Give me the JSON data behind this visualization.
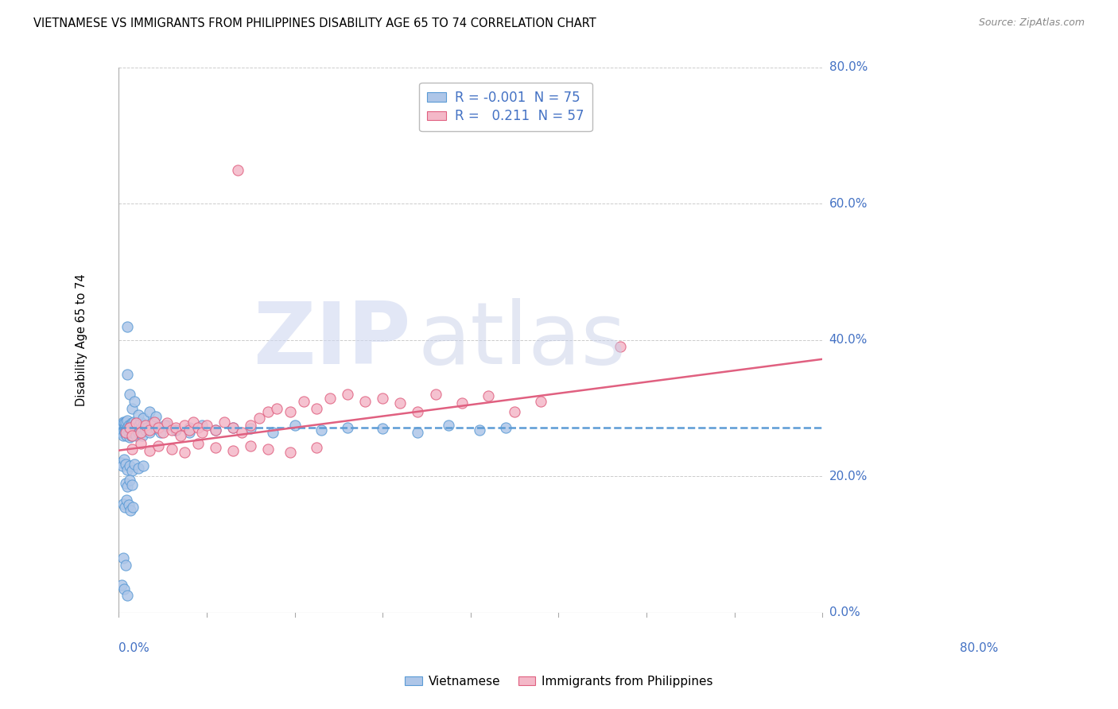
{
  "title": "VIETNAMESE VS IMMIGRANTS FROM PHILIPPINES DISABILITY AGE 65 TO 74 CORRELATION CHART",
  "source": "Source: ZipAtlas.com",
  "ylabel": "Disability Age 65 to 74",
  "ytick_labels": [
    "0.0%",
    "20.0%",
    "40.0%",
    "60.0%",
    "80.0%"
  ],
  "ytick_values": [
    0.0,
    0.2,
    0.4,
    0.6,
    0.8
  ],
  "xlim": [
    0.0,
    0.8
  ],
  "ylim": [
    0.0,
    0.8
  ],
  "series1_face": "#aec6e8",
  "series1_edge": "#5b9bd5",
  "series2_face": "#f4b8c8",
  "series2_edge": "#e06080",
  "trendline1_color": "#5b9bd5",
  "trendline2_color": "#e06080",
  "R1": -0.001,
  "N1": 75,
  "R2": 0.211,
  "N2": 57,
  "trend1_y0": 0.272,
  "trend1_y1": 0.272,
  "trend2_y0": 0.238,
  "trend2_y1": 0.372,
  "viet_x": [
    0.002,
    0.003,
    0.004,
    0.005,
    0.005,
    0.006,
    0.006,
    0.007,
    0.007,
    0.008,
    0.008,
    0.009,
    0.009,
    0.01,
    0.01,
    0.011,
    0.011,
    0.012,
    0.012,
    0.013,
    0.013,
    0.014,
    0.014,
    0.015,
    0.015,
    0.016,
    0.016,
    0.017,
    0.018,
    0.018,
    0.019,
    0.02,
    0.02,
    0.021,
    0.022,
    0.023,
    0.024,
    0.025,
    0.026,
    0.027,
    0.028,
    0.03,
    0.032,
    0.035,
    0.038,
    0.042,
    0.048,
    0.055,
    0.065,
    0.08,
    0.01,
    0.012,
    0.015,
    0.018,
    0.022,
    0.028,
    0.035,
    0.042,
    0.052,
    0.065,
    0.08,
    0.095,
    0.11,
    0.13,
    0.15,
    0.175,
    0.2,
    0.23,
    0.26,
    0.3,
    0.34,
    0.375,
    0.41,
    0.44,
    0.01
  ],
  "viet_y": [
    0.27,
    0.265,
    0.275,
    0.28,
    0.26,
    0.268,
    0.278,
    0.272,
    0.265,
    0.275,
    0.28,
    0.268,
    0.26,
    0.272,
    0.282,
    0.265,
    0.275,
    0.27,
    0.258,
    0.275,
    0.268,
    0.272,
    0.26,
    0.278,
    0.265,
    0.272,
    0.268,
    0.28,
    0.265,
    0.275,
    0.27,
    0.26,
    0.278,
    0.272,
    0.265,
    0.275,
    0.268,
    0.28,
    0.272,
    0.26,
    0.275,
    0.268,
    0.272,
    0.265,
    0.278,
    0.27,
    0.265,
    0.275,
    0.268,
    0.272,
    0.35,
    0.32,
    0.3,
    0.31,
    0.29,
    0.285,
    0.295,
    0.288,
    0.275,
    0.268,
    0.265,
    0.275,
    0.268,
    0.272,
    0.27,
    0.265,
    0.275,
    0.268,
    0.272,
    0.27,
    0.265,
    0.275,
    0.268,
    0.272,
    0.42
  ],
  "viet_x_outliers": [
    0.002,
    0.004,
    0.006,
    0.008,
    0.01,
    0.012,
    0.015,
    0.018,
    0.022,
    0.028,
    0.008,
    0.01,
    0.012,
    0.015,
    0.005,
    0.007,
    0.009,
    0.011,
    0.013,
    0.016,
    0.005,
    0.008,
    0.003,
    0.006,
    0.01
  ],
  "viet_y_outliers": [
    0.22,
    0.215,
    0.225,
    0.218,
    0.21,
    0.215,
    0.208,
    0.218,
    0.212,
    0.215,
    0.19,
    0.185,
    0.195,
    0.188,
    0.16,
    0.155,
    0.165,
    0.158,
    0.15,
    0.155,
    0.08,
    0.07,
    0.04,
    0.035,
    0.025
  ],
  "phil_x": [
    0.008,
    0.012,
    0.015,
    0.02,
    0.025,
    0.03,
    0.035,
    0.04,
    0.045,
    0.05,
    0.055,
    0.06,
    0.065,
    0.07,
    0.075,
    0.08,
    0.085,
    0.09,
    0.095,
    0.1,
    0.11,
    0.12,
    0.13,
    0.14,
    0.15,
    0.16,
    0.17,
    0.18,
    0.195,
    0.21,
    0.225,
    0.24,
    0.26,
    0.28,
    0.3,
    0.32,
    0.34,
    0.36,
    0.39,
    0.42,
    0.45,
    0.48,
    0.57,
    0.015,
    0.025,
    0.035,
    0.045,
    0.06,
    0.075,
    0.09,
    0.11,
    0.13,
    0.15,
    0.17,
    0.195,
    0.225,
    0.135
  ],
  "phil_y": [
    0.265,
    0.272,
    0.26,
    0.278,
    0.265,
    0.275,
    0.268,
    0.28,
    0.272,
    0.265,
    0.278,
    0.268,
    0.272,
    0.26,
    0.275,
    0.268,
    0.28,
    0.272,
    0.265,
    0.275,
    0.268,
    0.28,
    0.272,
    0.265,
    0.275,
    0.285,
    0.295,
    0.3,
    0.295,
    0.31,
    0.3,
    0.315,
    0.32,
    0.31,
    0.315,
    0.308,
    0.295,
    0.32,
    0.308,
    0.318,
    0.295,
    0.31,
    0.39,
    0.24,
    0.248,
    0.238,
    0.245,
    0.24,
    0.235,
    0.248,
    0.242,
    0.238,
    0.245,
    0.24,
    0.235,
    0.242,
    0.65
  ],
  "grid_color": "#cccccc",
  "title_fontsize": 10.5,
  "axis_label_fontsize": 10,
  "tick_label_color": "#4472c4",
  "legend_text_color": "#4472c4",
  "legend_r1_value": "-0.001",
  "legend_n1_value": "75",
  "legend_r2_value": "0.211",
  "legend_n2_value": "57",
  "watermark_zip_color": "#d0d8f0",
  "watermark_atlas_color": "#c8d0e8"
}
